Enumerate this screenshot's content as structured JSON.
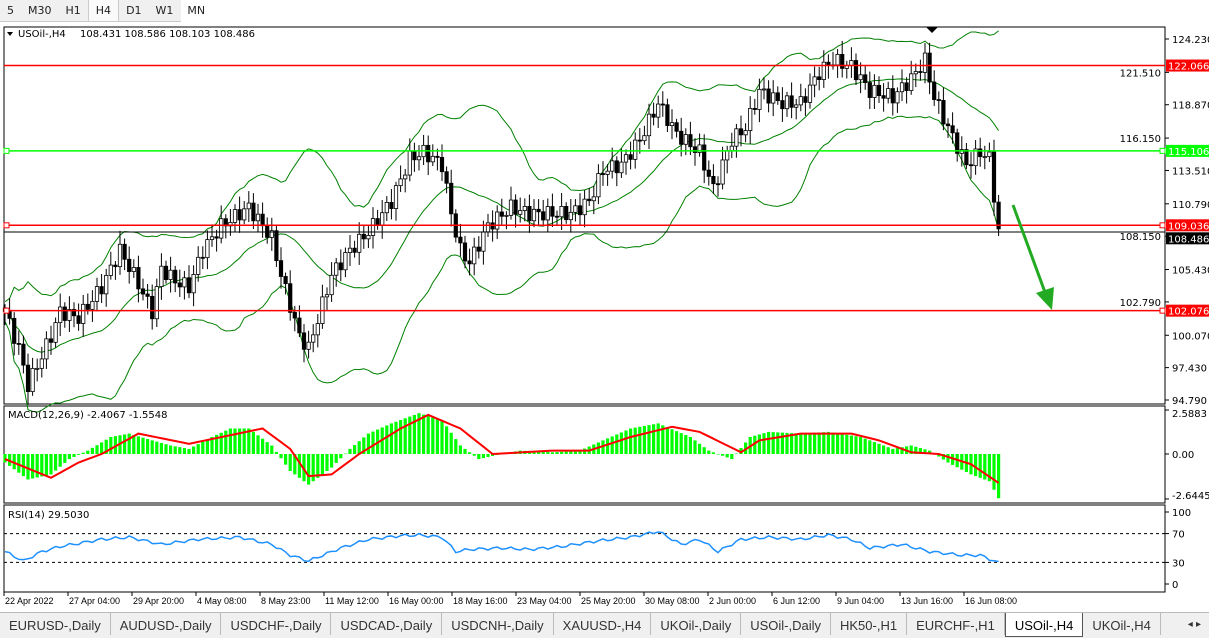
{
  "timeframes": [
    "5",
    "M30",
    "H1",
    "H4",
    "D1",
    "W1",
    "MN"
  ],
  "active_timeframe": "H4",
  "chart_header": {
    "symbol": "USOil-,H4",
    "ohlc": "108.431 108.586 108.103 108.486"
  },
  "colors": {
    "up_body": "#ffffff",
    "down_body": "#000000",
    "support_resistance": "#ff0000",
    "key_level": "#00ff00",
    "bands": "#008000",
    "macd_hist": "#00ff00",
    "macd_signal": "#ff0000",
    "rsi": "#1e90ff",
    "arrow": "#22aa22"
  },
  "chart_data": [
    {
      "type": "candlestick",
      "name": "USOil-,H4",
      "ylim": [
        94.79,
        124.23
      ],
      "yticks": [
        "124.230",
        "121.510",
        "118.870",
        "116.150",
        "113.510",
        "110.790",
        "108.150",
        "105.430",
        "102.790",
        "100.070",
        "97.430",
        "94.790"
      ],
      "close_waypoints": [
        [
          0,
          102
        ],
        [
          3,
          99
        ],
        [
          5,
          96
        ],
        [
          10,
          100
        ],
        [
          12,
          102
        ],
        [
          16,
          101.5
        ],
        [
          21,
          104
        ],
        [
          25,
          107
        ],
        [
          28,
          105
        ],
        [
          32,
          102
        ],
        [
          34,
          105.5
        ],
        [
          37,
          104.5
        ],
        [
          40,
          104
        ],
        [
          43,
          107
        ],
        [
          47,
          109
        ],
        [
          53,
          110.5
        ],
        [
          58,
          108
        ],
        [
          60,
          105
        ],
        [
          64,
          100
        ],
        [
          66,
          99
        ],
        [
          71,
          105
        ],
        [
          75,
          107
        ],
        [
          79,
          108.5
        ],
        [
          84,
          111
        ],
        [
          88,
          114.5
        ],
        [
          91,
          115
        ],
        [
          95,
          114
        ],
        [
          97,
          110
        ],
        [
          99,
          107
        ],
        [
          101,
          106
        ],
        [
          105,
          109
        ],
        [
          110,
          110.5
        ],
        [
          114,
          110
        ],
        [
          119,
          110
        ],
        [
          123,
          110
        ],
        [
          127,
          111
        ],
        [
          130,
          113.5
        ],
        [
          134,
          114
        ],
        [
          138,
          116
        ],
        [
          142,
          119
        ],
        [
          146,
          116.5
        ],
        [
          151,
          115
        ],
        [
          154,
          112
        ],
        [
          158,
          116
        ],
        [
          161,
          117
        ],
        [
          164,
          120
        ],
        [
          169,
          119
        ],
        [
          173,
          119
        ],
        [
          177,
          121.5
        ],
        [
          180,
          122.5
        ],
        [
          184,
          122
        ],
        [
          188,
          120
        ],
        [
          193,
          119.5
        ],
        [
          197,
          121
        ],
        [
          200,
          122.5
        ],
        [
          202,
          119.5
        ],
        [
          205,
          117
        ],
        [
          209,
          114
        ],
        [
          212,
          115
        ],
        [
          214,
          114.5
        ],
        [
          216,
          108.5
        ]
      ],
      "indicator": "Bollinger Bands",
      "levels": [
        {
          "value": "122.066",
          "color": "#ff0000"
        },
        {
          "value": "115.106",
          "color": "#00ff00"
        },
        {
          "value": "109.036",
          "color": "#ff0000"
        },
        {
          "value": "102.076",
          "color": "#ff0000"
        }
      ],
      "current_price": "108.486",
      "annotation": "green down arrow toward 102.076"
    },
    {
      "type": "macd",
      "label": "MACD(12,26,9) -2.4067 -1.5548",
      "ylim": [
        -2.6445,
        2.5883
      ],
      "yticks": [
        "2.5883",
        "0.00",
        "-2.6445"
      ],
      "histogram": [
        [
          0,
          -0.5
        ],
        [
          5,
          -1.5
        ],
        [
          10,
          -1.2
        ],
        [
          14,
          -0.3
        ],
        [
          18,
          0.2
        ],
        [
          23,
          1.0
        ],
        [
          27,
          1.2
        ],
        [
          32,
          0.8
        ],
        [
          36,
          0.5
        ],
        [
          40,
          0.3
        ],
        [
          45,
          1.0
        ],
        [
          49,
          1.5
        ],
        [
          53,
          1.5
        ],
        [
          58,
          0.5
        ],
        [
          62,
          -1.0
        ],
        [
          66,
          -1.8
        ],
        [
          71,
          -0.8
        ],
        [
          75,
          0.3
        ],
        [
          79,
          1.2
        ],
        [
          84,
          1.8
        ],
        [
          90,
          2.4
        ],
        [
          95,
          2.0
        ],
        [
          99,
          0.5
        ],
        [
          103,
          -0.3
        ],
        [
          108,
          0
        ],
        [
          112,
          0.2
        ],
        [
          119,
          0.1
        ],
        [
          125,
          0.2
        ],
        [
          130,
          0.8
        ],
        [
          136,
          1.5
        ],
        [
          142,
          1.8
        ],
        [
          149,
          1.0
        ],
        [
          153,
          0.2
        ],
        [
          158,
          -0.3
        ],
        [
          162,
          1.0
        ],
        [
          166,
          1.3
        ],
        [
          173,
          1.2
        ],
        [
          179,
          1.3
        ],
        [
          186,
          1.0
        ],
        [
          193,
          0.3
        ],
        [
          197,
          0.5
        ],
        [
          201,
          0.2
        ],
        [
          205,
          -0.5
        ],
        [
          210,
          -1.2
        ],
        [
          214,
          -1.6
        ],
        [
          216,
          -2.6
        ]
      ],
      "signal": [
        [
          0,
          -0.3
        ],
        [
          10,
          -1.4
        ],
        [
          16,
          -0.5
        ],
        [
          21,
          0
        ],
        [
          29,
          1.2
        ],
        [
          40,
          0.6
        ],
        [
          56,
          1.5
        ],
        [
          62,
          0.3
        ],
        [
          66,
          -1.3
        ],
        [
          71,
          -1.2
        ],
        [
          77,
          0
        ],
        [
          86,
          1.5
        ],
        [
          92,
          2.3
        ],
        [
          99,
          1.5
        ],
        [
          106,
          0
        ],
        [
          119,
          0.2
        ],
        [
          127,
          0.2
        ],
        [
          136,
          1.0
        ],
        [
          145,
          1.6
        ],
        [
          151,
          1.3
        ],
        [
          160,
          0.1
        ],
        [
          164,
          0.8
        ],
        [
          173,
          1.2
        ],
        [
          184,
          1.2
        ],
        [
          190,
          0.8
        ],
        [
          197,
          0.1
        ],
        [
          203,
          0
        ],
        [
          210,
          -0.6
        ],
        [
          216,
          -1.7
        ]
      ]
    },
    {
      "type": "line",
      "label": "RSI(14) 29.5030",
      "ylim": [
        0,
        100
      ],
      "yticks": [
        "100",
        "70",
        "30",
        "0"
      ],
      "levels": [
        70,
        30
      ],
      "values": [
        [
          0,
          45
        ],
        [
          4,
          32
        ],
        [
          8,
          45
        ],
        [
          12,
          52
        ],
        [
          21,
          62
        ],
        [
          27,
          65
        ],
        [
          34,
          55
        ],
        [
          42,
          62
        ],
        [
          51,
          65
        ],
        [
          58,
          55
        ],
        [
          62,
          40
        ],
        [
          66,
          32
        ],
        [
          73,
          50
        ],
        [
          79,
          62
        ],
        [
          86,
          67
        ],
        [
          90,
          68
        ],
        [
          95,
          65
        ],
        [
          98,
          45
        ],
        [
          101,
          48
        ],
        [
          108,
          50
        ],
        [
          114,
          48
        ],
        [
          121,
          52
        ],
        [
          129,
          60
        ],
        [
          136,
          65
        ],
        [
          142,
          73
        ],
        [
          147,
          55
        ],
        [
          151,
          62
        ],
        [
          155,
          45
        ],
        [
          160,
          62
        ],
        [
          166,
          65
        ],
        [
          173,
          62
        ],
        [
          179,
          68
        ],
        [
          184,
          62
        ],
        [
          188,
          50
        ],
        [
          195,
          55
        ],
        [
          201,
          45
        ],
        [
          208,
          40
        ],
        [
          212,
          40
        ],
        [
          216,
          29.5
        ]
      ]
    }
  ],
  "time_axis": [
    "22 Apr 2022",
    "27 Apr 04:00",
    "29 Apr 20:00",
    "4 May 08:00",
    "8 May 23:00",
    "11 May 12:00",
    "16 May 00:00",
    "18 May 16:00",
    "23 May 04:00",
    "25 May 20:00",
    "30 May 08:00",
    "2 Jun 00:00",
    "6 Jun 12:00",
    "9 Jun 04:00",
    "13 Jun 16:00",
    "16 Jun 08:00"
  ],
  "tabs": [
    "EURUSD-,Daily",
    "AUDUSD-,Daily",
    "USDCHF-,Daily",
    "USDCAD-,Daily",
    "USDCNH-,Daily",
    "XAUUSD-,H4",
    "UKOil-,Daily",
    "USOil-,Daily",
    "HK50-,H1",
    "EURCHF-,H1",
    "USOil-,H4",
    "UKOil-,H4"
  ],
  "active_tab": "USOil-,H4",
  "tab_scroll": "◂ ▸"
}
